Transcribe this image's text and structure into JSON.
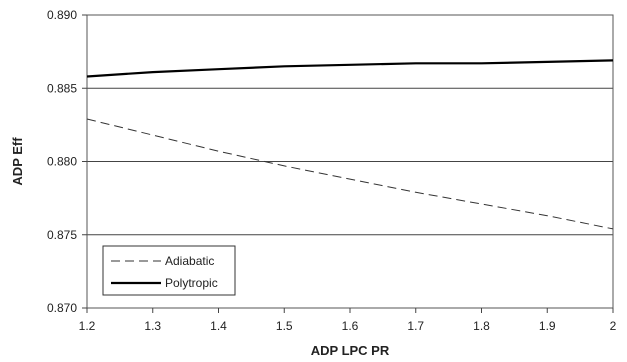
{
  "chart_data": {
    "type": "line",
    "xlabel": "ADP LPC PR",
    "ylabel": "ADP Eff",
    "xlim": [
      1.2,
      2.0
    ],
    "ylim": [
      0.87,
      0.89
    ],
    "x_ticks": [
      "1.2",
      "1.3",
      "1.4",
      "1.5",
      "1.6",
      "1.7",
      "1.8",
      "1.9",
      "2"
    ],
    "y_ticks": [
      "0.870",
      "0.875",
      "0.880",
      "0.885",
      "0.890"
    ],
    "grid": "horizontal",
    "legend_position": "bottom-left",
    "series": [
      {
        "name": "Adiabatic",
        "style": "dashed",
        "color": "#333333",
        "x": [
          1.2,
          1.3,
          1.4,
          1.5,
          1.6,
          1.7,
          1.8,
          1.9,
          2.0
        ],
        "y": [
          0.8829,
          0.8818,
          0.8807,
          0.8797,
          0.8788,
          0.8779,
          0.8771,
          0.8763,
          0.8754
        ]
      },
      {
        "name": "Polytropic",
        "style": "solid",
        "color": "#000000",
        "x": [
          1.2,
          1.3,
          1.4,
          1.5,
          1.6,
          1.7,
          1.8,
          1.9,
          2.0
        ],
        "y": [
          0.8858,
          0.8861,
          0.8863,
          0.8865,
          0.8866,
          0.8867,
          0.8867,
          0.8868,
          0.8869
        ]
      }
    ]
  }
}
